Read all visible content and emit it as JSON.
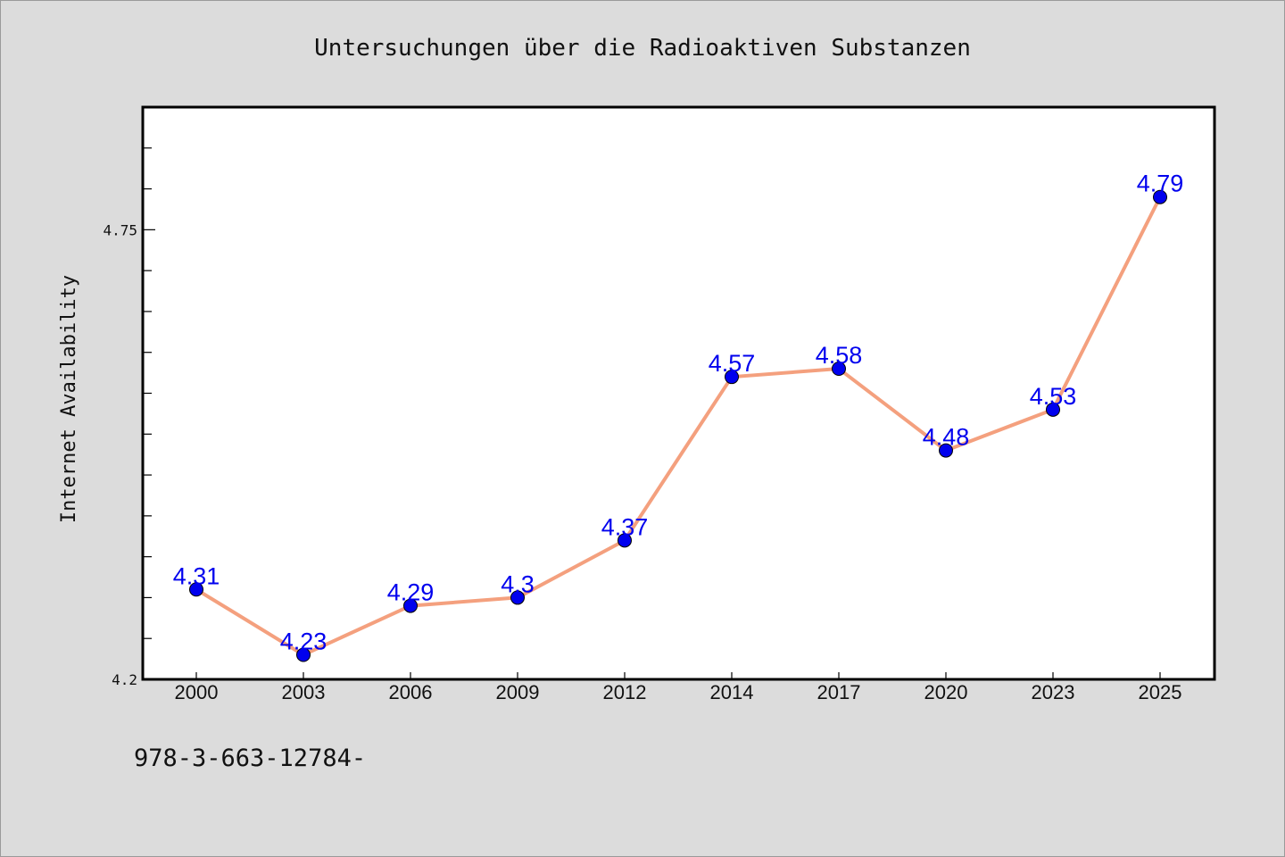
{
  "chart_data": {
    "type": "line",
    "title": "Untersuchungen über die Radioaktiven Substanzen",
    "xlabel": "",
    "ylabel": "Internet Availability",
    "categories": [
      "2000",
      "2003",
      "2006",
      "2009",
      "2012",
      "2014",
      "2017",
      "2020",
      "2023",
      "2025"
    ],
    "series": [
      {
        "values": [
          4.31,
          4.23,
          4.29,
          4.3,
          4.37,
          4.57,
          4.58,
          4.48,
          4.53,
          4.79
        ],
        "labels": [
          "4.31",
          "4.23",
          "4.29",
          "4.3",
          "4.37",
          "4.57",
          "4.58",
          "4.48",
          "4.53",
          "4.79"
        ],
        "line_color": "#f4a07e",
        "marker_color": "#0000ee"
      }
    ],
    "ylim": [
      4.2,
      4.9
    ],
    "yticks_labeled": [
      "4.2",
      "4.75"
    ],
    "ytick_values": [
      4.2,
      4.75
    ],
    "yminor_step": 0.05,
    "grid": false,
    "legend": "none",
    "data_label_color": "#0000ee"
  },
  "footer": {
    "text": "978-3-663-12784-"
  }
}
